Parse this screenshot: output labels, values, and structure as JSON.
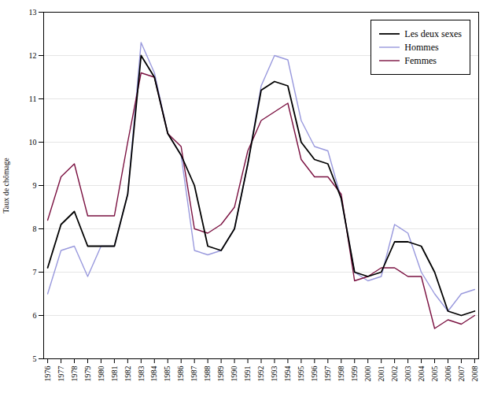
{
  "chart_data": {
    "type": "line",
    "ylabel": "Taux de chômage",
    "x": [
      1976,
      1977,
      1978,
      1979,
      1980,
      1981,
      1982,
      1983,
      1984,
      1985,
      1986,
      1987,
      1988,
      1989,
      1990,
      1991,
      1992,
      1993,
      1994,
      1995,
      1996,
      1997,
      1998,
      1999,
      2000,
      2001,
      2002,
      2003,
      2004,
      2005,
      2006,
      2007,
      2008
    ],
    "series": [
      {
        "name": "Les deux sexes",
        "color": "#000000",
        "values": [
          7.1,
          8.1,
          8.4,
          7.6,
          7.6,
          7.6,
          8.8,
          12.0,
          11.5,
          10.2,
          9.7,
          9.0,
          7.6,
          7.5,
          8.0,
          9.5,
          11.2,
          11.4,
          11.3,
          10.0,
          9.6,
          9.5,
          8.7,
          7.0,
          6.9,
          7.0,
          7.7,
          7.7,
          7.6,
          7.0,
          6.1,
          6.0,
          6.1
        ]
      },
      {
        "name": "Hommes",
        "color": "#9999dd",
        "values": [
          6.5,
          7.5,
          7.6,
          6.9,
          7.6,
          7.6,
          8.8,
          12.3,
          11.6,
          10.2,
          9.7,
          7.5,
          7.4,
          7.5,
          8.0,
          9.5,
          11.3,
          12.0,
          11.9,
          10.5,
          9.9,
          9.8,
          8.7,
          7.0,
          6.8,
          6.9,
          8.1,
          7.9,
          7.0,
          6.5,
          6.1,
          6.5,
          6.6
        ]
      },
      {
        "name": "Femmes",
        "color": "#7a1040",
        "values": [
          8.2,
          9.2,
          9.5,
          8.3,
          8.3,
          8.3,
          10.0,
          11.6,
          11.5,
          10.2,
          9.9,
          8.0,
          7.9,
          8.1,
          8.5,
          9.8,
          10.5,
          10.7,
          10.9,
          9.6,
          9.2,
          9.2,
          8.8,
          6.8,
          6.9,
          7.1,
          7.1,
          6.9,
          6.9,
          5.7,
          5.9,
          5.8,
          6.0
        ]
      }
    ],
    "xlim": [
      1975.7,
      2008.3
    ],
    "xticks": [
      1976,
      1977,
      1978,
      1979,
      1980,
      1981,
      1982,
      1983,
      1984,
      1985,
      1986,
      1987,
      1988,
      1989,
      1990,
      1991,
      1992,
      1993,
      1994,
      1995,
      1996,
      1997,
      1998,
      1999,
      2000,
      2001,
      2002,
      2003,
      2004,
      2005,
      2006,
      2007,
      2008
    ],
    "ylim": [
      5,
      13
    ],
    "yticks": [
      5,
      6,
      7,
      8,
      9,
      10,
      11,
      12,
      13
    ],
    "grid": true,
    "legend": "upper right"
  }
}
